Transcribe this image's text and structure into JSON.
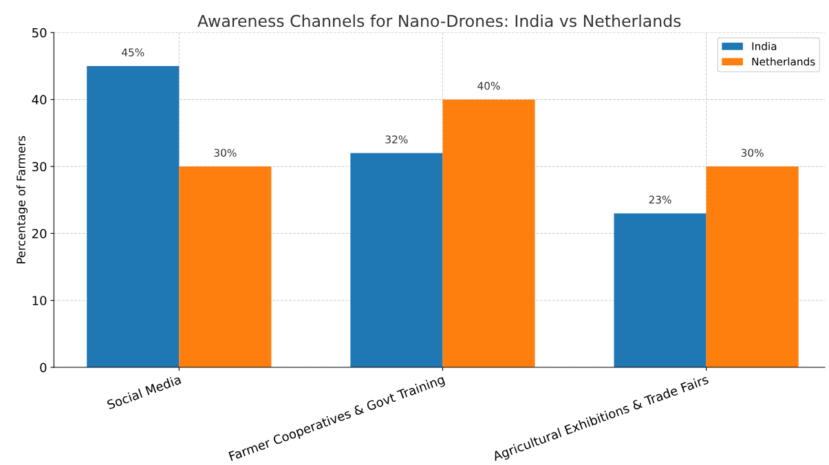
{
  "chart_data": {
    "type": "bar",
    "title": "Awareness Channels for Nano-Drones: India vs Netherlands",
    "ylabel": "Percentage of Farmers",
    "categories": [
      "Social Media",
      "Farmer Cooperatives & Govt Training",
      "Agricultural Exhibitions & Trade Fairs"
    ],
    "series": [
      {
        "name": "India",
        "color": "#1f77b4",
        "values": [
          45,
          32,
          23
        ],
        "value_labels": [
          "45%",
          "32%",
          "23%"
        ]
      },
      {
        "name": "Netherlands",
        "color": "#ff7f0e",
        "values": [
          30,
          40,
          30
        ],
        "value_labels": [
          "30%",
          "40%",
          "30%"
        ]
      }
    ],
    "ylim": [
      0,
      50
    ],
    "yticks": [
      0,
      10,
      20,
      30,
      40,
      50
    ],
    "grid": true,
    "legend": "top right"
  }
}
